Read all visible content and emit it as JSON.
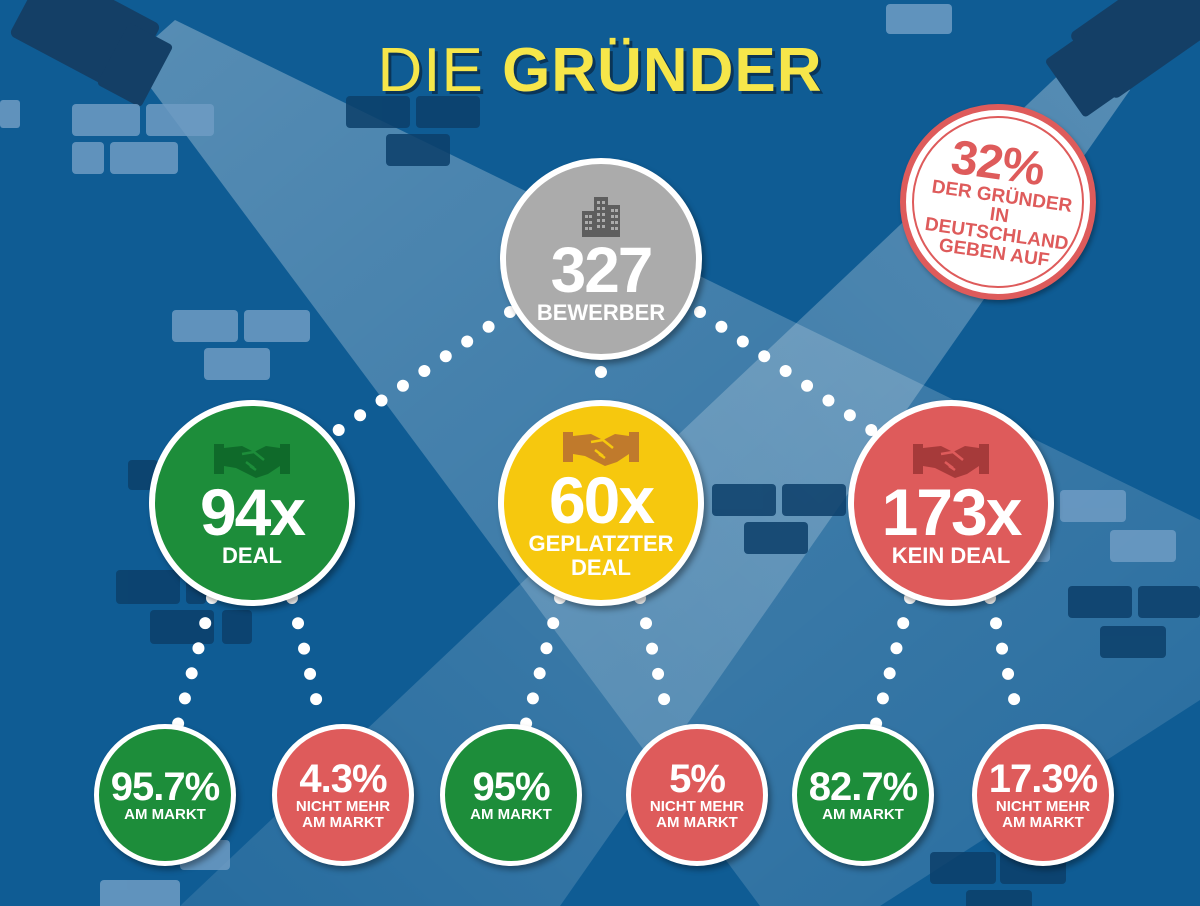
{
  "title": {
    "part1": "DIE",
    "part2": "GRÜNDER"
  },
  "root": {
    "value": "327",
    "label": "BEWERBER",
    "icon": "building-icon"
  },
  "outcomes": [
    {
      "value": "94x",
      "label": "DEAL",
      "icon": "handshake-icon",
      "color": "#1d8d3a"
    },
    {
      "value": "60x",
      "label": "GEPLATZTER DEAL",
      "icon": "handshake-icon",
      "color": "#f6c80e"
    },
    {
      "value": "173x",
      "label": "KEIN DEAL",
      "icon": "handshake-icon",
      "color": "#de5b5b"
    }
  ],
  "leaves": [
    {
      "value": "95.7%",
      "label": "AM MARKT",
      "color": "#1d8d3a"
    },
    {
      "value": "4.3%",
      "label": "NICHT MEHR AM MARKT",
      "color": "#de5b5b"
    },
    {
      "value": "95%",
      "label": "AM MARKT",
      "color": "#1d8d3a"
    },
    {
      "value": "5%",
      "label": "NICHT MEHR AM MARKT",
      "color": "#de5b5b"
    },
    {
      "value": "82.7%",
      "label": "AM MARKT",
      "color": "#1d8d3a"
    },
    {
      "value": "17.3%",
      "label": "NICHT MEHR AM MARKT",
      "color": "#de5b5b"
    }
  ],
  "badge": {
    "percent": "32%",
    "text": "DER GRÜNDER IN DEUTSCHLAND GEBEN AUF",
    "color": "#de5b5b"
  },
  "colors": {
    "background": "#0f5c94",
    "title": "#f6e64a",
    "connector": "#ffffff"
  }
}
